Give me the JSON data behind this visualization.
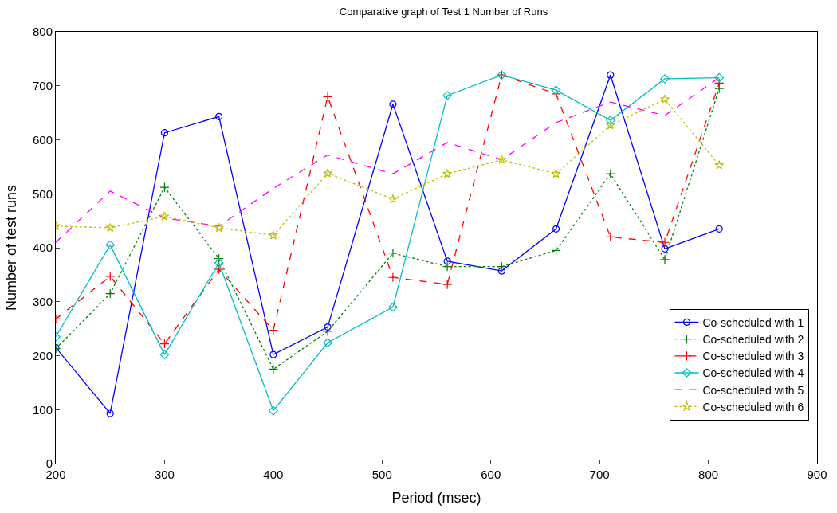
{
  "chart_data": {
    "type": "line",
    "title": "Comparative graph of Test 1 Number of Runs",
    "xlabel": "Period (msec)",
    "ylabel": "Number of test runs",
    "x": [
      200,
      250,
      300,
      350,
      400,
      450,
      510,
      560,
      610,
      660,
      710,
      760,
      810
    ],
    "xlim": [
      200,
      900
    ],
    "xticks": [
      200,
      300,
      400,
      500,
      600,
      700,
      800,
      900
    ],
    "ylim": [
      0,
      800
    ],
    "yticks": [
      0,
      100,
      200,
      300,
      400,
      500,
      600,
      700,
      800
    ],
    "grid": false,
    "legend": "bottom right",
    "series": [
      {
        "name": "Co-scheduled with 1",
        "color": "#0000ff",
        "marker": "circle",
        "line_style": "solid",
        "values": [
          215,
          93,
          613,
          643,
          202,
          253,
          666,
          375,
          357,
          435,
          720,
          398,
          435
        ]
      },
      {
        "name": "Co-scheduled with 2",
        "color": "#008000",
        "marker": "cross",
        "line_style": "dotted",
        "values": [
          213,
          315,
          512,
          380,
          175,
          245,
          390,
          365,
          365,
          395,
          537,
          378,
          695
        ]
      },
      {
        "name": "Co-scheduled with 3",
        "color": "#ff0000",
        "marker": "cross",
        "line_style": "dashed",
        "values": [
          268,
          347,
          222,
          360,
          247,
          680,
          345,
          332,
          720,
          685,
          420,
          410,
          705
        ]
      },
      {
        "name": "Co-scheduled with 4",
        "color": "#00bfbf",
        "marker": "diamond",
        "line_style": "solid",
        "values": [
          235,
          405,
          202,
          372,
          98,
          224,
          290,
          682,
          720,
          692,
          636,
          713,
          715
        ]
      },
      {
        "name": "Co-scheduled with 5",
        "color": "#ff00ff",
        "marker": "none",
        "line_style": "dashed",
        "values": [
          410,
          505,
          455,
          440,
          510,
          572,
          537,
          595,
          563,
          632,
          670,
          645,
          715
        ]
      },
      {
        "name": "Co-scheduled with 6",
        "color": "#bfbf00",
        "marker": "star",
        "line_style": "dotted",
        "values": [
          440,
          437,
          458,
          437,
          423,
          538,
          490,
          537,
          563,
          537,
          627,
          675,
          553
        ]
      }
    ]
  }
}
